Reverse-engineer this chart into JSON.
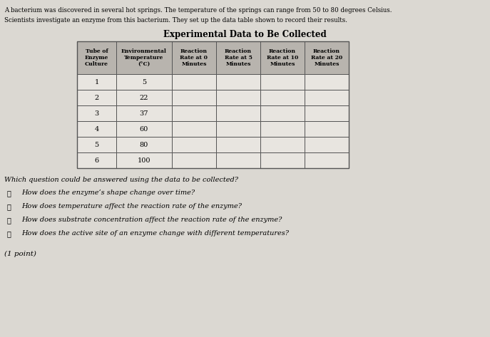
{
  "paragraph1": "A bacterium was discovered in several hot springs. The temperature of the springs can range from 50 to 80 degrees Celsius.",
  "paragraph2": "Scientists investigate an enzyme from this bacterium. They set up the data table shown to record their results.",
  "table_title": "Experimental Data to Be Collected",
  "col_headers": [
    "Tube of\nEnzyme\nCulture",
    "Environmental\nTemperature\n(°C)",
    "Reaction\nRate at 0\nMinutes",
    "Reaction\nRate at 5\nMinutes",
    "Reaction\nRate at 10\nMinutes",
    "Reaction\nRate at 20\nMinutes"
  ],
  "rows": [
    [
      "1",
      "5",
      "",
      "",
      "",
      ""
    ],
    [
      "2",
      "22",
      "",
      "",
      "",
      ""
    ],
    [
      "3",
      "37",
      "",
      "",
      "",
      ""
    ],
    [
      "4",
      "60",
      "",
      "",
      "",
      ""
    ],
    [
      "5",
      "80",
      "",
      "",
      "",
      ""
    ],
    [
      "6",
      "100",
      "",
      "",
      "",
      ""
    ]
  ],
  "question": "Which question could be answered using the data to be collected?",
  "option_labels": [
    "Ⓐ",
    "Ⓑ",
    "Ⓒ",
    "Ⓓ"
  ],
  "option_texts": [
    "How does the enzyme’s shape change over time?",
    "How does temperature affect the reaction rate of the enzyme?",
    "How does substrate concentration affect the reaction rate of the enzyme?",
    "How does the active site of an enzyme change with different temperatures?"
  ],
  "footer": "(1 point)",
  "bg_color": "#dbd8d2",
  "table_header_bg": "#b8b4ae",
  "table_cell_bg": "#e8e5e0",
  "table_border_color": "#555555"
}
